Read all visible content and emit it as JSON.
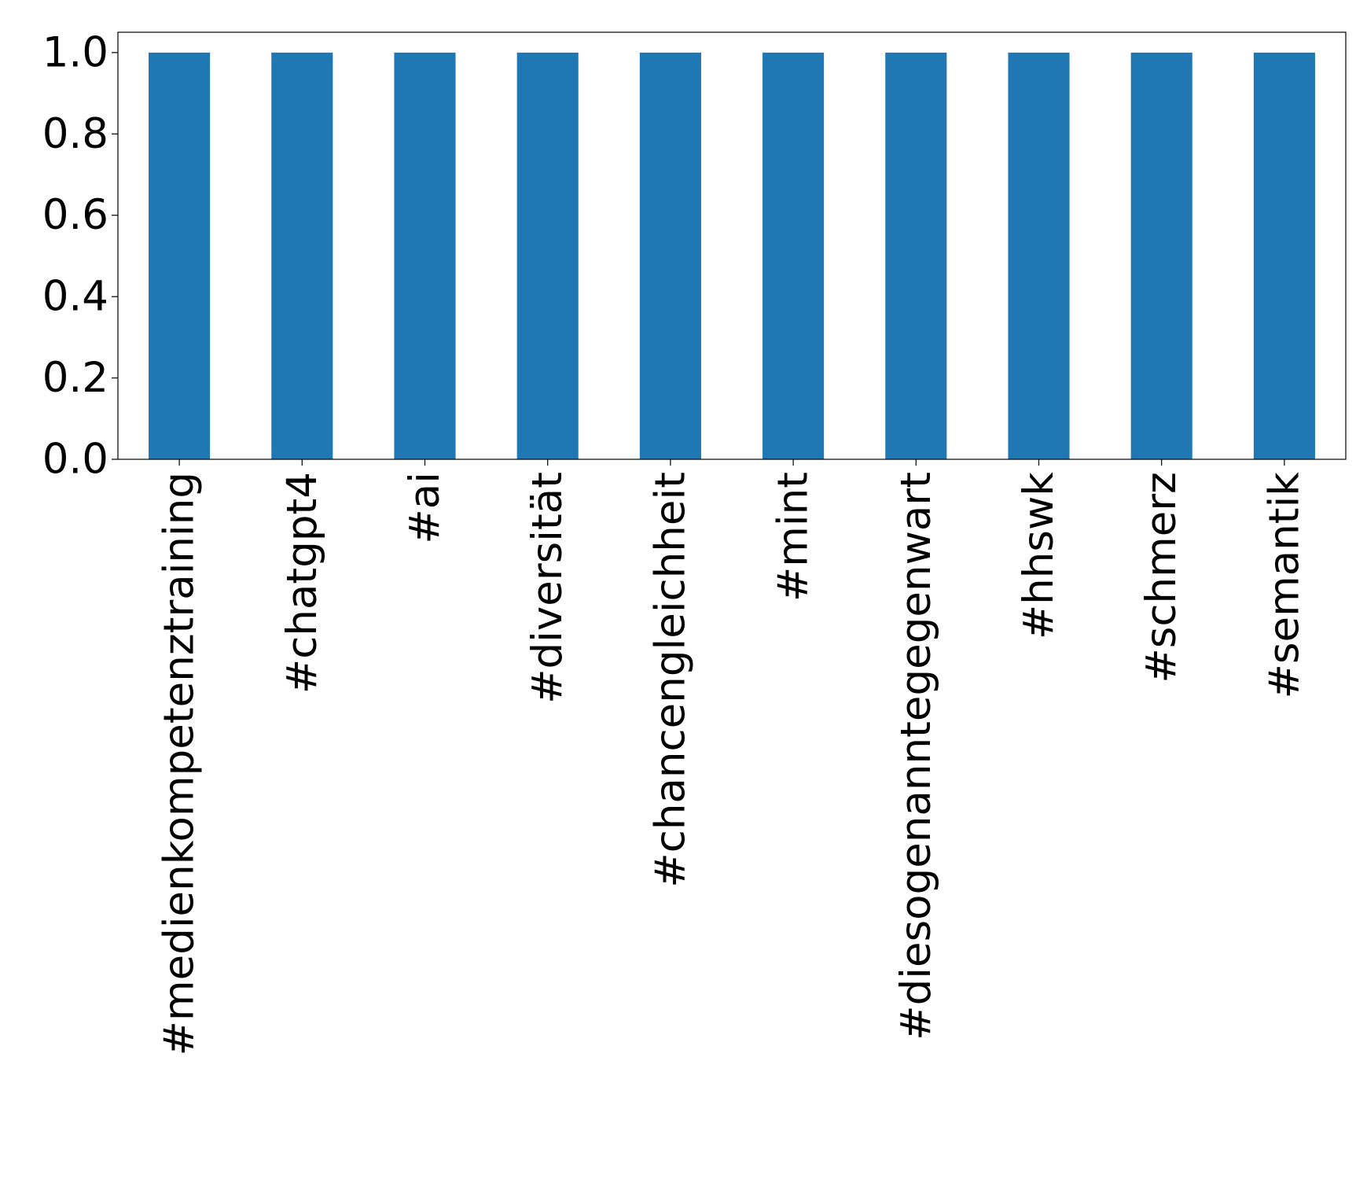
{
  "chart_data": {
    "type": "bar",
    "title": "",
    "xlabel": "",
    "ylabel": "",
    "categories": [
      "#medienkompetenztraining",
      "#chatgpt4",
      "#ai",
      "#diversität",
      "#chancengleichheit",
      "#mint",
      "#diesogenanntegegenwart",
      "#hhswk",
      "#schmerz",
      "#semantik"
    ],
    "values": [
      1,
      1,
      1,
      1,
      1,
      1,
      1,
      1,
      1,
      1
    ],
    "ylim": [
      0,
      1.05
    ],
    "yticks": [
      "0.0",
      "0.2",
      "0.4",
      "0.6",
      "0.8",
      "1.0"
    ],
    "bar_color": "#1f77b4",
    "grid": false,
    "legend": "none"
  }
}
